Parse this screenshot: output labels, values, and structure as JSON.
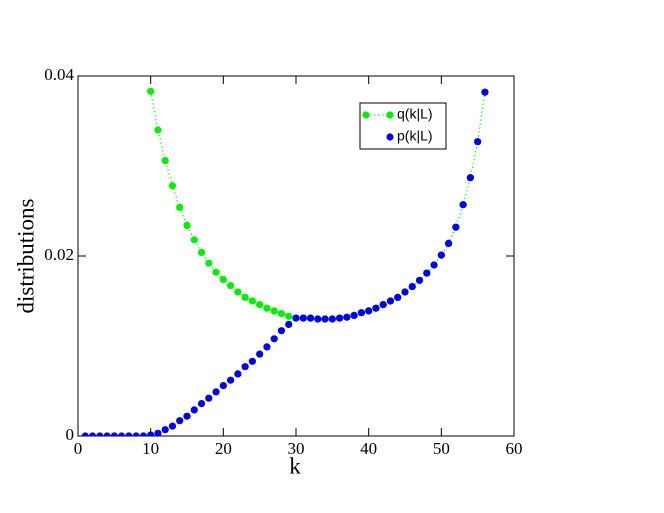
{
  "chart_data": {
    "type": "scatter",
    "x_label": "k",
    "y_label": "distributions",
    "x": [
      1,
      2,
      3,
      4,
      5,
      6,
      7,
      8,
      9,
      10,
      11,
      12,
      13,
      14,
      15,
      16,
      17,
      18,
      19,
      20,
      21,
      22,
      23,
      24,
      25,
      26,
      27,
      28,
      29,
      30,
      31,
      32,
      33,
      34,
      35,
      36,
      37,
      38,
      39,
      40,
      41,
      42,
      43,
      44,
      45,
      46,
      47,
      48,
      49,
      50,
      51,
      52,
      53,
      54,
      55,
      56
    ],
    "series": [
      {
        "name": "q(k|L)",
        "color": "#00ee00",
        "line": "dotted",
        "values": [
          null,
          null,
          null,
          null,
          null,
          null,
          null,
          null,
          null,
          0.0383,
          0.034,
          0.0306,
          0.0278,
          0.0254,
          0.0234,
          0.0218,
          0.0204,
          0.0192,
          0.0182,
          0.0174,
          0.0167,
          0.016,
          0.0154,
          0.015,
          0.0146,
          0.0142,
          0.0139,
          0.0136,
          0.0133,
          0.0131,
          0.0131,
          0.0131,
          0.013,
          0.013,
          0.013,
          0.0131,
          0.0132,
          0.0134,
          0.0137,
          0.0139,
          0.0142,
          0.0146,
          0.015,
          0.0154,
          0.016,
          0.0166,
          0.0173,
          0.0181,
          0.019,
          0.0201,
          0.0214,
          0.0232,
          0.0257,
          0.0287,
          0.0327,
          0.0382
        ]
      },
      {
        "name": "p(k|L)",
        "color": "#0000ee",
        "values": [
          0,
          0,
          0,
          0,
          0,
          0,
          0,
          0,
          0,
          0.0001,
          0.0003,
          0.0007,
          0.0011,
          0.0017,
          0.0022,
          0.0029,
          0.0036,
          0.0042,
          0.0049,
          0.0056,
          0.0062,
          0.0069,
          0.0077,
          0.0083,
          0.0091,
          0.0099,
          0.0108,
          0.0117,
          0.0124,
          0.0131,
          0.0131,
          0.0131,
          0.013,
          0.013,
          0.013,
          0.0131,
          0.0132,
          0.0134,
          0.0137,
          0.0139,
          0.0142,
          0.0146,
          0.015,
          0.0154,
          0.016,
          0.0166,
          0.0173,
          0.0181,
          0.019,
          0.0201,
          0.0214,
          0.0232,
          0.0257,
          0.0287,
          0.0327,
          0.0382
        ]
      }
    ],
    "xlim": [
      0,
      60
    ],
    "xticks": [
      0,
      10,
      20,
      30,
      40,
      50,
      60
    ],
    "ylim": [
      0,
      0.04
    ],
    "yticks": [
      0,
      0.02,
      0.04
    ],
    "legend": "upper-right"
  }
}
